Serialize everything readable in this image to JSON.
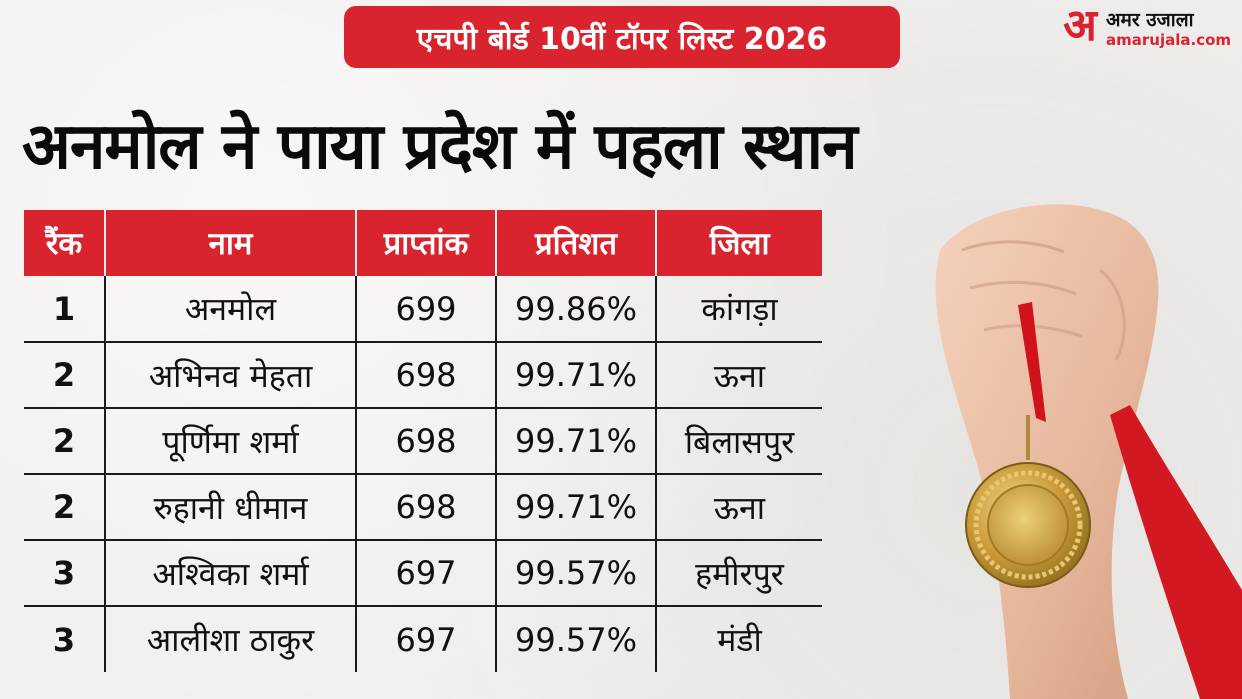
{
  "header": {
    "label": "एचपी बोर्ड 10वीं टॉपर लिस्ट 2026",
    "logo_mark": "अ",
    "logo_name": "अमर उजाला",
    "logo_domain": "amarujala.com"
  },
  "headline": "अनमोल ने पाया प्रदेश में पहला स्थान",
  "table": {
    "columns": [
      "रैंक",
      "नाम",
      "प्राप्तांक",
      "प्रतिशत",
      "जिला"
    ],
    "rows": [
      [
        "1",
        "अनमोल",
        "699",
        "99.86%",
        "कांगड़ा"
      ],
      [
        "2",
        "अभिनव मेहता",
        "698",
        "99.71%",
        "ऊना"
      ],
      [
        "2",
        "पूर्णिमा शर्मा",
        "698",
        "99.71%",
        "बिलासपुर"
      ],
      [
        "2",
        "रुहानी धीमान",
        "698",
        "99.71%",
        "ऊना"
      ],
      [
        "3",
        "अश्विका शर्मा",
        "697",
        "99.57%",
        "हमीरपुर"
      ],
      [
        "3",
        "आलीशा ठाकुर",
        "697",
        "99.57%",
        "मंडी"
      ]
    ]
  },
  "colors": {
    "accent": "#d9232e",
    "background": "#efeeec",
    "text": "#111111"
  },
  "image": {
    "icon": "medal-in-fist-photo"
  }
}
